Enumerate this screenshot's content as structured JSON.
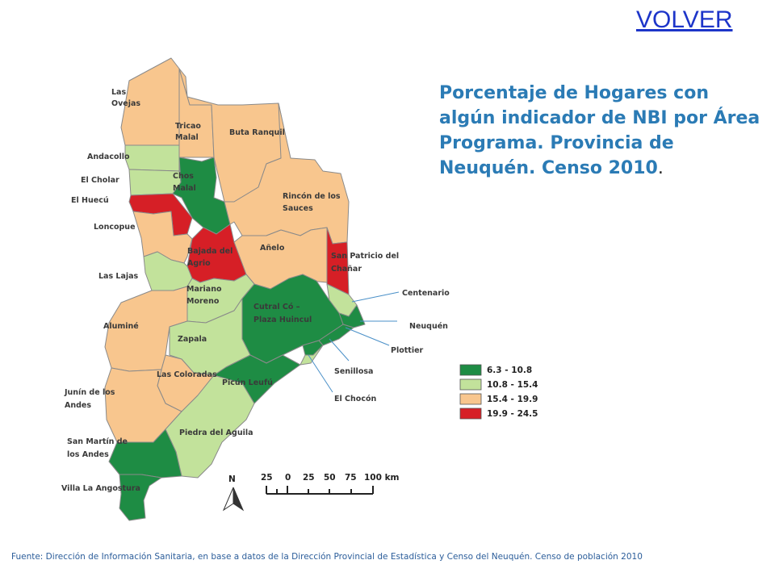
{
  "nav": {
    "back_label": "VOLVER"
  },
  "title": {
    "text": "Porcentaje de Hogares con algún indicador de NBI por Área Programa. Provincia de Neuquén. Censo 2010",
    "trailing_dot": "."
  },
  "legend": {
    "classes": [
      {
        "label": "6.3 - 10.8",
        "color": "#1e8c44"
      },
      {
        "label": "10.8 - 15.4",
        "color": "#c2e29b"
      },
      {
        "label": "15.4 - 19.9",
        "color": "#f8c68e"
      },
      {
        "label": "19.9 - 24.5",
        "color": "#d61f26"
      }
    ]
  },
  "areas": [
    {
      "name": "Las Ovejas",
      "class": 2
    },
    {
      "name": "Tricao Malal",
      "class": 2
    },
    {
      "name": "Buta Ranquil",
      "class": 2
    },
    {
      "name": "Andacollo",
      "class": 1
    },
    {
      "name": "El Cholar",
      "class": 1
    },
    {
      "name": "Chos Malal",
      "class": 0
    },
    {
      "name": "El Huecú",
      "class": 3
    },
    {
      "name": "Rincón de los Sauces",
      "class": 2
    },
    {
      "name": "Loncopue",
      "class": 2
    },
    {
      "name": "Bajada del Agrio",
      "class": 3
    },
    {
      "name": "Añelo",
      "class": 2
    },
    {
      "name": "San Patricio del Chañar",
      "class": 3
    },
    {
      "name": "Las Lajas",
      "class": 1
    },
    {
      "name": "Mariano Moreno",
      "class": 1
    },
    {
      "name": "Centenario",
      "class": 1
    },
    {
      "name": "Cutral Có – Plaza Huincul",
      "class": 0
    },
    {
      "name": "Neuquén",
      "class": 0
    },
    {
      "name": "Aluminé",
      "class": 2
    },
    {
      "name": "Zapala",
      "class": 1
    },
    {
      "name": "Plottier",
      "class": 0
    },
    {
      "name": "Senillosa",
      "class": 0
    },
    {
      "name": "Las Coloradas",
      "class": 2
    },
    {
      "name": "Picún Leufú",
      "class": 0
    },
    {
      "name": "El Chocón",
      "class": 1
    },
    {
      "name": "Junín de los Andes",
      "class": 2
    },
    {
      "name": "Piedra del Aguila",
      "class": 1
    },
    {
      "name": "San Martín de los Andes",
      "class": 0
    },
    {
      "name": "Villa La Angostura",
      "class": 0
    }
  ],
  "map_labels": {
    "las_ovejas": [
      "Las",
      "Ovejas"
    ],
    "tricao_malal": [
      "Tricao",
      "Malal"
    ],
    "buta_ranquil": [
      "Buta Ranquil"
    ],
    "andacollo": [
      "Andacollo"
    ],
    "el_cholar": [
      "El Cholar"
    ],
    "chos_malal": [
      "Chos",
      "Malal"
    ],
    "el_huecu": [
      "El Huecú"
    ],
    "rincon": [
      "Rincón de los",
      "Sauces"
    ],
    "loncopue": [
      "Loncopue"
    ],
    "bajada": [
      "Bajada del",
      "Agrio"
    ],
    "anelo": [
      "Añelo"
    ],
    "san_patricio": [
      "San Patricio del",
      "Chañar"
    ],
    "las_lajas": [
      "Las Lajas"
    ],
    "mariano_moreno": [
      "Mariano",
      "Moreno"
    ],
    "centenario": [
      "Centenario"
    ],
    "cutral_co": [
      "Cutral Có –",
      "Plaza Huincul"
    ],
    "neuquen": [
      "Neuquén"
    ],
    "alumine": [
      "Aluminé"
    ],
    "zapala": [
      "Zapala"
    ],
    "plottier": [
      "Plottier"
    ],
    "senillosa": [
      "Senillosa"
    ],
    "las_coloradas": [
      "Las Coloradas"
    ],
    "picun_leufu": [
      "Picún Leufú"
    ],
    "el_chocon": [
      "El Chocón"
    ],
    "junin": [
      "Junín de los",
      "Andes"
    ],
    "piedra": [
      "Piedra del Aguila"
    ],
    "san_martin": [
      "San Martín de",
      "los Andes"
    ],
    "villa": [
      "Villa La Angostura"
    ]
  },
  "scale_bar": {
    "ticks": [
      "25",
      "0",
      "25",
      "50",
      "75",
      "100 km"
    ]
  },
  "north_arrow": {
    "label": "N",
    "icon": "north-arrow-icon"
  },
  "source": "Fuente: Dirección de Información Sanitaria, en base a datos de la Dirección Provincial de Estadística y Censo del Neuquén. Censo de población 2010"
}
